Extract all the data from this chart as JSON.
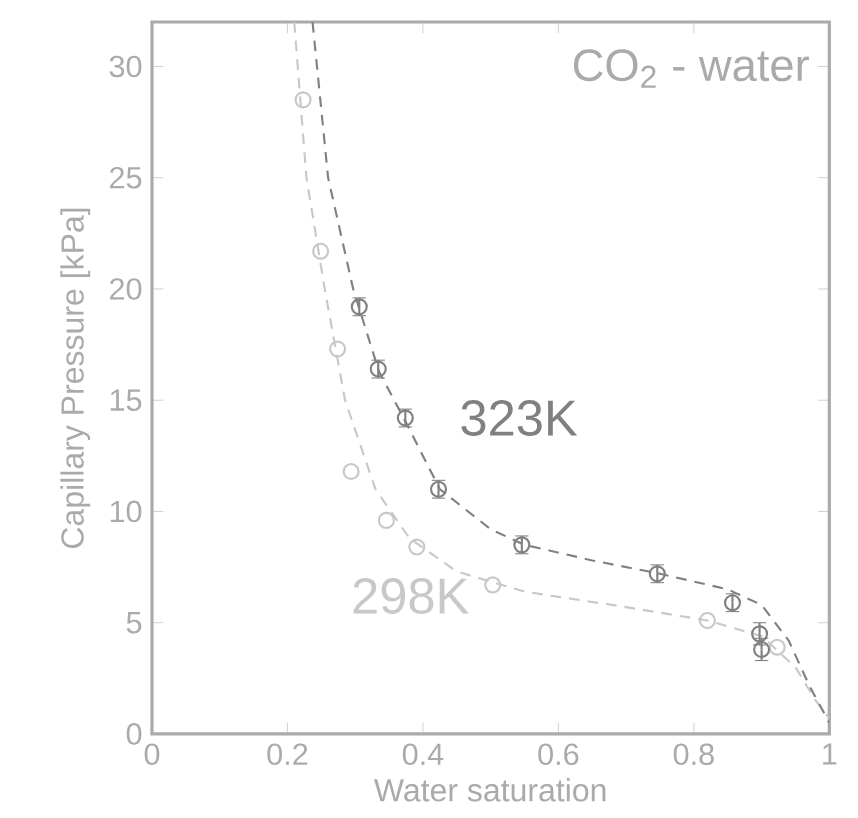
{
  "chart_data": {
    "type": "scatter",
    "xlabel": "Water saturation",
    "ylabel": "Capillary Pressure [kPa]",
    "annotations": [
      "CO$_{2}$ - water"
    ],
    "xlim": [
      0,
      1
    ],
    "ylim": [
      0,
      32
    ],
    "xticks": [
      0,
      0.2,
      0.4,
      0.6,
      0.8,
      1
    ],
    "yticks": [
      0,
      5,
      10,
      15,
      20,
      25,
      30
    ],
    "grid": false,
    "marker": "circle",
    "series": [
      {
        "type": "line",
        "color": "#c8c8c8",
        "line_style": "dashed",
        "marker": "none",
        "x": [
          0.21,
          0.228,
          0.255,
          0.285,
          0.33,
          0.38,
          0.45,
          0.55,
          0.7,
          0.82,
          0.9,
          0.95,
          0.98,
          1.0
        ],
        "values": [
          32,
          25,
          20,
          15,
          11,
          8.8,
          7.3,
          6.4,
          5.7,
          5.1,
          4.4,
          3,
          1.5,
          0.7
        ]
      },
      {
        "type": "line",
        "color": "#808080",
        "line_style": "dashed",
        "marker": "none",
        "x": [
          0.237,
          0.26,
          0.297,
          0.335,
          0.375,
          0.425,
          0.5,
          0.55,
          0.65,
          0.75,
          0.85,
          0.9,
          0.94,
          0.97,
          1.0
        ],
        "values": [
          32,
          25,
          20,
          16.3,
          14,
          11,
          9.2,
          8.5,
          7.8,
          7.2,
          6.5,
          5.8,
          4.2,
          2.2,
          0.5
        ]
      },
      {
        "name": "298K",
        "color": "#c8c8c8",
        "x": [
          0.223,
          0.249,
          0.274,
          0.294,
          0.346,
          0.391,
          0.503,
          0.82,
          0.923
        ],
        "values": [
          28.5,
          21.7,
          17.3,
          11.8,
          9.6,
          8.4,
          6.7,
          5.1,
          3.9
        ]
      },
      {
        "name": "323K",
        "color": "#808080",
        "x": [
          0.306,
          0.334,
          0.374,
          0.423,
          0.546,
          0.746,
          0.857,
          0.897,
          0.9
        ],
        "values": [
          19.2,
          16.4,
          14.2,
          11.0,
          8.5,
          7.2,
          5.9,
          4.5,
          3.8
        ],
        "errors": [
          0.4,
          0.4,
          0.4,
          0.4,
          0.4,
          0.4,
          0.4,
          0.5,
          0.5
        ]
      }
    ]
  }
}
